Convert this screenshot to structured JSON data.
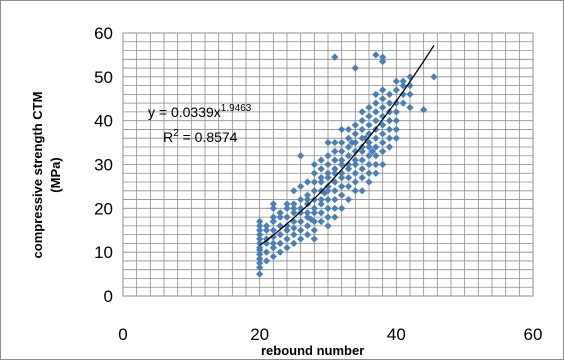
{
  "chart_data": {
    "type": "scatter",
    "xlabel": "rebound number",
    "ylabel_line1": "compressive strength CTM",
    "ylabel_line2": "(MPa)",
    "xlim": [
      0,
      60
    ],
    "ylim": [
      0,
      60
    ],
    "xticks": [
      "0",
      "20",
      "40",
      "60"
    ],
    "yticks": [
      "0",
      "10",
      "20",
      "30",
      "40",
      "50",
      "60"
    ],
    "grid": true,
    "grid_minor_x_step": 2,
    "grid_y_step": 2,
    "marker_color": "#4a7ebb",
    "trendline_color": "#000000",
    "trendline": {
      "kind": "power",
      "coefficient": 0.0339,
      "exponent": 1.9463,
      "x_range": [
        20,
        45.5
      ],
      "equation_prefix": "y = 0.0339x",
      "equation_exponent": "1.9463",
      "r2_prefix": "R",
      "r2_exponent": "2",
      "r2_suffix": " = 0.8574"
    },
    "points": [
      [
        20,
        5
      ],
      [
        20,
        6.5
      ],
      [
        20,
        7.5
      ],
      [
        20,
        8.5
      ],
      [
        20,
        9.5
      ],
      [
        20,
        10.5
      ],
      [
        20,
        11
      ],
      [
        20,
        12
      ],
      [
        20,
        13
      ],
      [
        20,
        14
      ],
      [
        20,
        15
      ],
      [
        20,
        16
      ],
      [
        20,
        17
      ],
      [
        21,
        8
      ],
      [
        21,
        10
      ],
      [
        21,
        12
      ],
      [
        21,
        13
      ],
      [
        21,
        15
      ],
      [
        21,
        16
      ],
      [
        22,
        9
      ],
      [
        22,
        11
      ],
      [
        22,
        12
      ],
      [
        22,
        13.5
      ],
      [
        22,
        15
      ],
      [
        22,
        17
      ],
      [
        22,
        18
      ],
      [
        22,
        20
      ],
      [
        22,
        21
      ],
      [
        23,
        10
      ],
      [
        23,
        12
      ],
      [
        23,
        14
      ],
      [
        23,
        16
      ],
      [
        23,
        18
      ],
      [
        23,
        19
      ],
      [
        24,
        11
      ],
      [
        24,
        13
      ],
      [
        24,
        15
      ],
      [
        24,
        16
      ],
      [
        24,
        18
      ],
      [
        24,
        20
      ],
      [
        24,
        21
      ],
      [
        25,
        12
      ],
      [
        25,
        14
      ],
      [
        25,
        15.5
      ],
      [
        25,
        17
      ],
      [
        25,
        19
      ],
      [
        25,
        20
      ],
      [
        25,
        21
      ],
      [
        25,
        24
      ],
      [
        26,
        13
      ],
      [
        26,
        15
      ],
      [
        26,
        17
      ],
      [
        26,
        19
      ],
      [
        26,
        20
      ],
      [
        26,
        22
      ],
      [
        26,
        25
      ],
      [
        26,
        32
      ],
      [
        27,
        14
      ],
      [
        27,
        16
      ],
      [
        27,
        18
      ],
      [
        27,
        19
      ],
      [
        27,
        21
      ],
      [
        27,
        22
      ],
      [
        27,
        23
      ],
      [
        27,
        26
      ],
      [
        28,
        13
      ],
      [
        28,
        15
      ],
      [
        28,
        17
      ],
      [
        28,
        19
      ],
      [
        28,
        20
      ],
      [
        28,
        22
      ],
      [
        28,
        24
      ],
      [
        28,
        26
      ],
      [
        28,
        28
      ],
      [
        28,
        30
      ],
      [
        29,
        17
      ],
      [
        29,
        19
      ],
      [
        29,
        21
      ],
      [
        29,
        22
      ],
      [
        29,
        24
      ],
      [
        29,
        26
      ],
      [
        29,
        27
      ],
      [
        29,
        29
      ],
      [
        29,
        31
      ],
      [
        30,
        16
      ],
      [
        30,
        18
      ],
      [
        30,
        20
      ],
      [
        30,
        22
      ],
      [
        30,
        24
      ],
      [
        30,
        25
      ],
      [
        30,
        27
      ],
      [
        30,
        28
      ],
      [
        30,
        30
      ],
      [
        30,
        32
      ],
      [
        30,
        35
      ],
      [
        31,
        18
      ],
      [
        31,
        20
      ],
      [
        31,
        22
      ],
      [
        31,
        24
      ],
      [
        31,
        26
      ],
      [
        31,
        28
      ],
      [
        31,
        29
      ],
      [
        31,
        31
      ],
      [
        31,
        33
      ],
      [
        31,
        35
      ],
      [
        31,
        54.5
      ],
      [
        32,
        20
      ],
      [
        32,
        23
      ],
      [
        32,
        25
      ],
      [
        32,
        27
      ],
      [
        32,
        28
      ],
      [
        32,
        30
      ],
      [
        32,
        31
      ],
      [
        32,
        33
      ],
      [
        32,
        35
      ],
      [
        32,
        38
      ],
      [
        33,
        22
      ],
      [
        33,
        25
      ],
      [
        33,
        27
      ],
      [
        33,
        29
      ],
      [
        33,
        30
      ],
      [
        33,
        32
      ],
      [
        33,
        34
      ],
      [
        33,
        36
      ],
      [
        33,
        38
      ],
      [
        34,
        24
      ],
      [
        34,
        26
      ],
      [
        34,
        28
      ],
      [
        34,
        30
      ],
      [
        34,
        31
      ],
      [
        34,
        33
      ],
      [
        34,
        35
      ],
      [
        34,
        37
      ],
      [
        34,
        39
      ],
      [
        34,
        52
      ],
      [
        35,
        24
      ],
      [
        35,
        27
      ],
      [
        35,
        29
      ],
      [
        35,
        31
      ],
      [
        35,
        33
      ],
      [
        35,
        34
      ],
      [
        35,
        36
      ],
      [
        35,
        38
      ],
      [
        35,
        40
      ],
      [
        35,
        42
      ],
      [
        36,
        26
      ],
      [
        36,
        28
      ],
      [
        36,
        30
      ],
      [
        36,
        32
      ],
      [
        36,
        34
      ],
      [
        36,
        35
      ],
      [
        36,
        37
      ],
      [
        36,
        39
      ],
      [
        36,
        41
      ],
      [
        36,
        43
      ],
      [
        37,
        28
      ],
      [
        37,
        30
      ],
      [
        37,
        32
      ],
      [
        37,
        34
      ],
      [
        37,
        36
      ],
      [
        37,
        38
      ],
      [
        37,
        40
      ],
      [
        37,
        42
      ],
      [
        37,
        44
      ],
      [
        37,
        46
      ],
      [
        37,
        55
      ],
      [
        38,
        30
      ],
      [
        38,
        33
      ],
      [
        38,
        35
      ],
      [
        38,
        37
      ],
      [
        38,
        39
      ],
      [
        38,
        41
      ],
      [
        38,
        43
      ],
      [
        38,
        45
      ],
      [
        38,
        47
      ],
      [
        38,
        53.5
      ],
      [
        38,
        54.5
      ],
      [
        39,
        34
      ],
      [
        39,
        36
      ],
      [
        39,
        38
      ],
      [
        39,
        40
      ],
      [
        39,
        42
      ],
      [
        39,
        44
      ],
      [
        39,
        46
      ],
      [
        40,
        36
      ],
      [
        40,
        38
      ],
      [
        40,
        40
      ],
      [
        40,
        42
      ],
      [
        40,
        44
      ],
      [
        40,
        47
      ],
      [
        40,
        49
      ],
      [
        41,
        44
      ],
      [
        41,
        46
      ],
      [
        41,
        48
      ],
      [
        41,
        49
      ],
      [
        42,
        43
      ],
      [
        42,
        46
      ],
      [
        42,
        48
      ],
      [
        42,
        50
      ],
      [
        44,
        42.5
      ],
      [
        45.5,
        50
      ],
      [
        35.5,
        36
      ],
      [
        33.5,
        35
      ],
      [
        36.5,
        33
      ],
      [
        29.5,
        23.5
      ],
      [
        27.5,
        17.5
      ]
    ]
  }
}
